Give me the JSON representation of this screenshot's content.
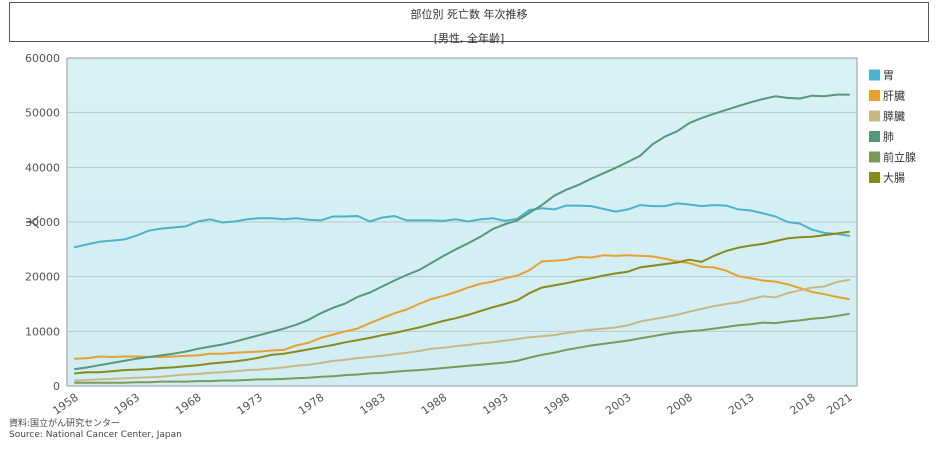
{
  "chart_data": {
    "type": "line",
    "title": "部位別 死亡数 年次推移",
    "subtitle": "[男性, 全年齢]",
    "ylabel": "人",
    "xlabel": "",
    "ylim": [
      0,
      60000
    ],
    "yticks": [
      0,
      10000,
      20000,
      30000,
      40000,
      50000,
      60000
    ],
    "xticks": [
      1958,
      1963,
      1968,
      1973,
      1978,
      1983,
      1988,
      1993,
      1998,
      2003,
      2008,
      2013,
      2018,
      2021
    ],
    "grid": true,
    "legend_position": "right",
    "x": [
      1958,
      1959,
      1960,
      1961,
      1962,
      1963,
      1964,
      1965,
      1966,
      1967,
      1968,
      1969,
      1970,
      1971,
      1972,
      1973,
      1974,
      1975,
      1976,
      1977,
      1978,
      1979,
      1980,
      1981,
      1982,
      1983,
      1984,
      1985,
      1986,
      1987,
      1988,
      1989,
      1990,
      1991,
      1992,
      1993,
      1994,
      1995,
      1996,
      1997,
      1998,
      1999,
      2000,
      2001,
      2002,
      2003,
      2004,
      2005,
      2006,
      2007,
      2008,
      2009,
      2010,
      2011,
      2012,
      2013,
      2014,
      2015,
      2016,
      2017,
      2018,
      2019,
      2020,
      2021
    ],
    "series": [
      {
        "name": "胃",
        "color": "#4bb3cc",
        "values": [
          25400,
          25900,
          26400,
          26600,
          26800,
          27500,
          28400,
          28800,
          29000,
          29200,
          30100,
          30500,
          29900,
          30100,
          30500,
          30700,
          30700,
          30500,
          30700,
          30400,
          30300,
          31000,
          31000,
          31100,
          30100,
          30800,
          31100,
          30300,
          30300,
          30300,
          30200,
          30500,
          30100,
          30500,
          30700,
          30200,
          30600,
          32200,
          32500,
          32300,
          33000,
          33000,
          32900,
          32400,
          31900,
          32300,
          33100,
          32900,
          32900,
          33400,
          33200,
          32900,
          33100,
          33000,
          32300,
          32100,
          31600,
          31000,
          30000,
          29700,
          28600,
          28000,
          27800,
          27500
        ]
      },
      {
        "name": "肝臓",
        "color": "#e8a030",
        "values": [
          5000,
          5100,
          5400,
          5300,
          5400,
          5400,
          5300,
          5300,
          5400,
          5500,
          5600,
          5900,
          5900,
          6100,
          6200,
          6300,
          6500,
          6600,
          7400,
          7900,
          8800,
          9400,
          10000,
          10500,
          11500,
          12400,
          13300,
          14000,
          15000,
          15900,
          16500,
          17200,
          18000,
          18700,
          19100,
          19700,
          20200,
          21200,
          22800,
          22900,
          23100,
          23600,
          23500,
          23900,
          23800,
          23900,
          23800,
          23700,
          23300,
          22800,
          22500,
          21800,
          21700,
          21100,
          20100,
          19700,
          19300,
          19100,
          18600,
          17900,
          17200,
          16800,
          16300,
          15900
        ]
      },
      {
        "name": "膵臓",
        "color": "#c8b888",
        "values": [
          1000,
          1100,
          1200,
          1300,
          1400,
          1500,
          1600,
          1700,
          1900,
          2100,
          2200,
          2400,
          2500,
          2700,
          2900,
          3000,
          3200,
          3400,
          3700,
          3900,
          4200,
          4600,
          4800,
          5100,
          5300,
          5500,
          5800,
          6100,
          6400,
          6800,
          7000,
          7300,
          7500,
          7800,
          8000,
          8300,
          8600,
          8900,
          9100,
          9300,
          9700,
          10000,
          10300,
          10500,
          10700,
          11100,
          11800,
          12200,
          12600,
          13000,
          13600,
          14100,
          14600,
          15000,
          15300,
          15900,
          16400,
          16200,
          17000,
          17500,
          18000,
          18200,
          19000,
          19400
        ]
      },
      {
        "name": "肺",
        "color": "#56987a",
        "values": [
          3100,
          3400,
          3800,
          4200,
          4600,
          5000,
          5300,
          5600,
          5900,
          6300,
          6800,
          7200,
          7600,
          8100,
          8700,
          9300,
          9900,
          10500,
          11200,
          12100,
          13300,
          14300,
          15100,
          16300,
          17100,
          18200,
          19300,
          20300,
          21200,
          22500,
          23800,
          25000,
          26100,
          27300,
          28700,
          29600,
          30300,
          31700,
          33100,
          34800,
          35900,
          36800,
          37900,
          38900,
          39900,
          41000,
          42100,
          44200,
          45600,
          46600,
          48100,
          49000,
          49800,
          50500,
          51200,
          51900,
          52500,
          53000,
          52700,
          52600,
          53100,
          53000,
          53300,
          53300
        ]
      },
      {
        "name": "前立腺",
        "color": "#7a9a5a",
        "values": [
          600,
          600,
          600,
          600,
          600,
          700,
          700,
          800,
          800,
          800,
          900,
          900,
          1000,
          1000,
          1100,
          1200,
          1200,
          1300,
          1400,
          1500,
          1700,
          1800,
          2000,
          2100,
          2300,
          2400,
          2600,
          2800,
          2900,
          3100,
          3300,
          3500,
          3700,
          3900,
          4100,
          4300,
          4600,
          5200,
          5700,
          6100,
          6600,
          7000,
          7400,
          7700,
          8000,
          8300,
          8700,
          9100,
          9500,
          9800,
          10000,
          10200,
          10500,
          10800,
          11100,
          11300,
          11600,
          11500,
          11800,
          12000,
          12300,
          12500,
          12800,
          13200
        ]
      },
      {
        "name": "大腸",
        "color": "#8a8a1c",
        "values": [
          2300,
          2500,
          2500,
          2700,
          2900,
          3000,
          3100,
          3300,
          3400,
          3600,
          3800,
          4100,
          4300,
          4500,
          4800,
          5200,
          5700,
          5900,
          6300,
          6700,
          7100,
          7500,
          8000,
          8400,
          8800,
          9300,
          9700,
          10200,
          10700,
          11300,
          11900,
          12400,
          13000,
          13700,
          14400,
          15000,
          15700,
          17000,
          18000,
          18400,
          18800,
          19300,
          19700,
          20200,
          20600,
          20900,
          21700,
          22000,
          22300,
          22600,
          23100,
          22700,
          23800,
          24700,
          25300,
          25700,
          26000,
          26500,
          27000,
          27200,
          27300,
          27600,
          27900,
          28200
        ]
      }
    ]
  },
  "footer": {
    "line1": "資料:国立がん研究センター",
    "line2": "Source: National Cancer Center, Japan"
  }
}
